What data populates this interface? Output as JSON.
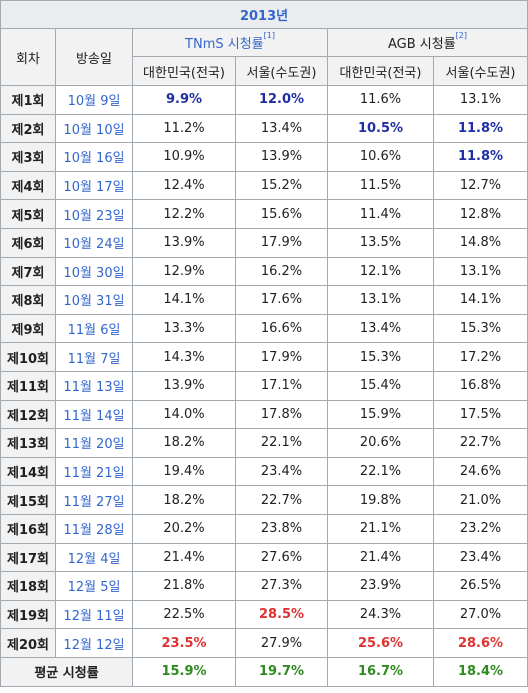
{
  "table": {
    "year": "2013년",
    "col_episode": "회차",
    "col_date": "방송일",
    "group_tnms": "TNmS 시청률",
    "group_tnms_ref": "[1]",
    "group_agb": "AGB 시청률",
    "group_agb_ref": "[2]",
    "sub_national": "대한민국(전국)",
    "sub_seoul": "서울(수도권)",
    "colors": {
      "highlight_low": "#1f2fa3",
      "highlight_high": "#dd3333",
      "average": "#2e8b1f",
      "link": "#3366cc"
    },
    "rows": [
      {
        "ep": "제1회",
        "date": "10월 9일",
        "tn": "9.9%",
        "ts": "12.0%",
        "an": "11.6%",
        "as": "13.1%"
      },
      {
        "ep": "제2회",
        "date": "10월 10일",
        "tn": "11.2%",
        "ts": "13.4%",
        "an": "10.5%",
        "as": "11.8%"
      },
      {
        "ep": "제3회",
        "date": "10월 16일",
        "tn": "10.9%",
        "ts": "13.9%",
        "an": "10.6%",
        "as": "11.8%"
      },
      {
        "ep": "제4회",
        "date": "10월 17일",
        "tn": "12.4%",
        "ts": "15.2%",
        "an": "11.5%",
        "as": "12.7%"
      },
      {
        "ep": "제5회",
        "date": "10월 23일",
        "tn": "12.2%",
        "ts": "15.6%",
        "an": "11.4%",
        "as": "12.8%"
      },
      {
        "ep": "제6회",
        "date": "10월 24일",
        "tn": "13.9%",
        "ts": "17.9%",
        "an": "13.5%",
        "as": "14.8%"
      },
      {
        "ep": "제7회",
        "date": "10월 30일",
        "tn": "12.9%",
        "ts": "16.2%",
        "an": "12.1%",
        "as": "13.1%"
      },
      {
        "ep": "제8회",
        "date": "10월 31일",
        "tn": "14.1%",
        "ts": "17.6%",
        "an": "13.1%",
        "as": "14.1%"
      },
      {
        "ep": "제9회",
        "date": "11월 6일",
        "tn": "13.3%",
        "ts": "16.6%",
        "an": "13.4%",
        "as": "15.3%"
      },
      {
        "ep": "제10회",
        "date": "11월 7일",
        "tn": "14.3%",
        "ts": "17.9%",
        "an": "15.3%",
        "as": "17.2%"
      },
      {
        "ep": "제11회",
        "date": "11월 13일",
        "tn": "13.9%",
        "ts": "17.1%",
        "an": "15.4%",
        "as": "16.8%"
      },
      {
        "ep": "제12회",
        "date": "11월 14일",
        "tn": "14.0%",
        "ts": "17.8%",
        "an": "15.9%",
        "as": "17.5%"
      },
      {
        "ep": "제13회",
        "date": "11월 20일",
        "tn": "18.2%",
        "ts": "22.1%",
        "an": "20.6%",
        "as": "22.7%"
      },
      {
        "ep": "제14회",
        "date": "11월 21일",
        "tn": "19.4%",
        "ts": "23.4%",
        "an": "22.1%",
        "as": "24.6%"
      },
      {
        "ep": "제15회",
        "date": "11월 27일",
        "tn": "18.2%",
        "ts": "22.7%",
        "an": "19.8%",
        "as": "21.0%"
      },
      {
        "ep": "제16회",
        "date": "11월 28일",
        "tn": "20.2%",
        "ts": "23.8%",
        "an": "21.1%",
        "as": "23.2%"
      },
      {
        "ep": "제17회",
        "date": "12월 4일",
        "tn": "21.4%",
        "ts": "27.6%",
        "an": "21.4%",
        "as": "23.4%"
      },
      {
        "ep": "제18회",
        "date": "12월 5일",
        "tn": "21.8%",
        "ts": "27.3%",
        "an": "23.9%",
        "as": "26.5%"
      },
      {
        "ep": "제19회",
        "date": "12월 11일",
        "tn": "22.5%",
        "ts": "28.5%",
        "an": "24.3%",
        "as": "27.0%"
      },
      {
        "ep": "제20회",
        "date": "12월 12일",
        "tn": "23.5%",
        "ts": "27.9%",
        "an": "25.6%",
        "as": "28.6%"
      }
    ],
    "average": {
      "label": "평균 시청률",
      "tn": "15.9%",
      "ts": "19.7%",
      "an": "16.7%",
      "as": "18.4%"
    }
  }
}
